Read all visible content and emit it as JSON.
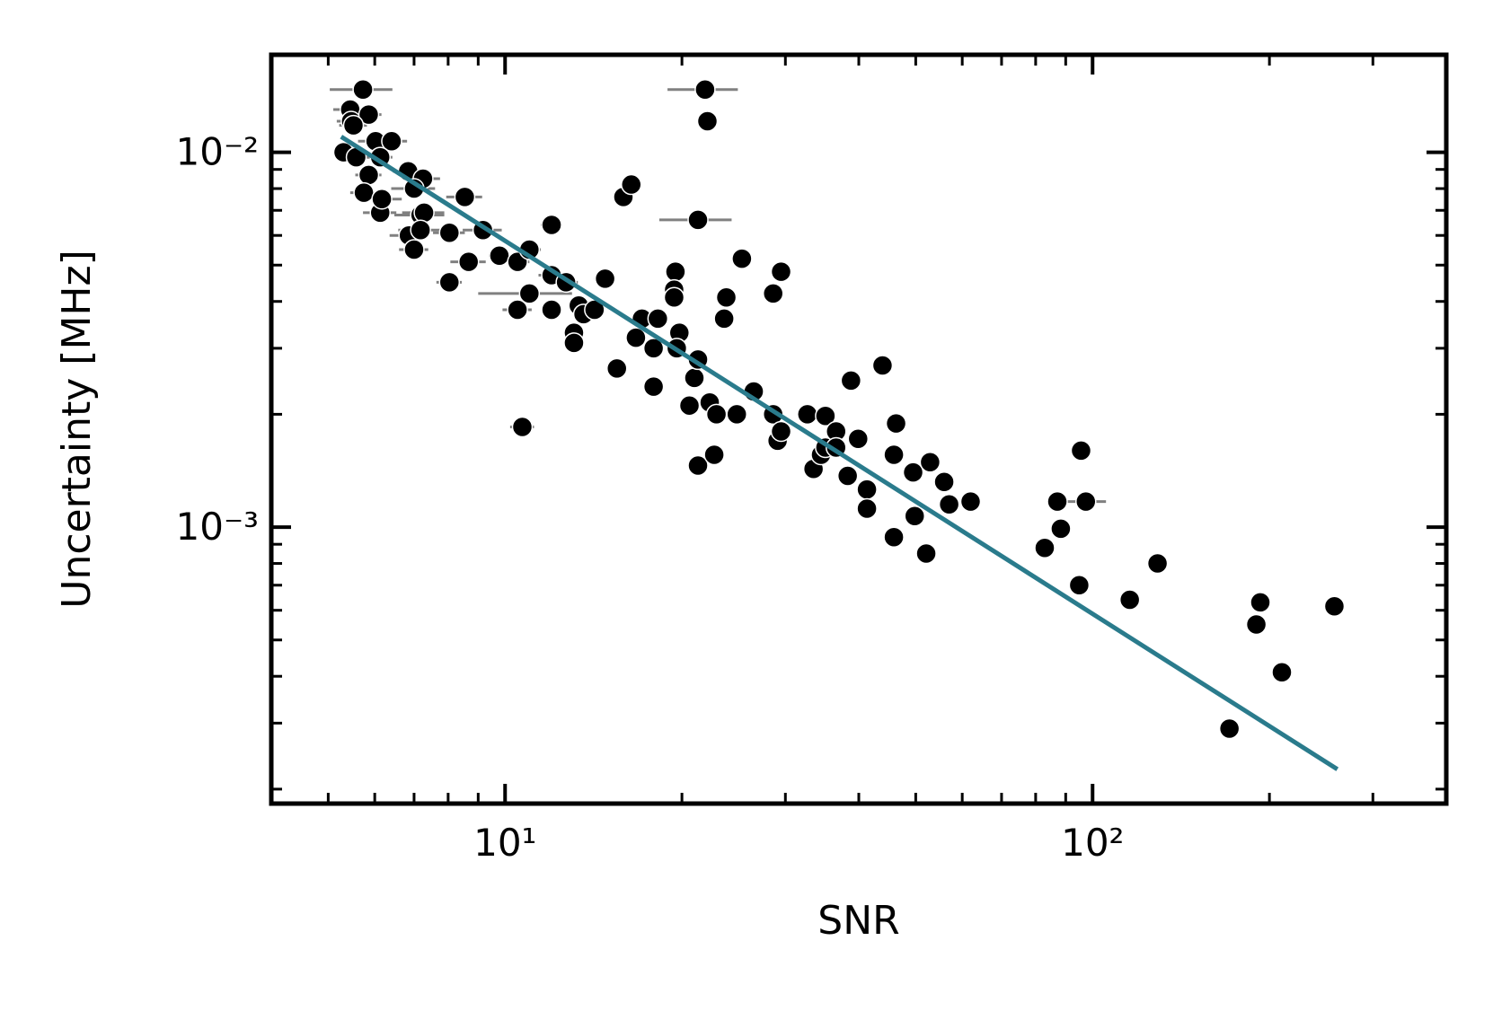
{
  "chart_data": {
    "type": "scatter",
    "xlabel": "SNR",
    "ylabel": "Uncertainty [MHz]",
    "xscale": "log",
    "yscale": "log",
    "xlim": [
      4,
      400
    ],
    "ylim": [
      0.000183,
      0.0182
    ],
    "xticks": [
      {
        "value": 10,
        "label": "10¹"
      },
      {
        "value": 100,
        "label": "10²"
      }
    ],
    "yticks": [
      {
        "value": 0.01,
        "label": "10⁻²"
      },
      {
        "value": 0.001,
        "label": "10⁻³"
      }
    ],
    "xminorticks": [
      5,
      6,
      7,
      8,
      9,
      20,
      30,
      40,
      50,
      60,
      70,
      80,
      90,
      200,
      300
    ],
    "yminorticks": [
      0.0002,
      0.0003,
      0.0004,
      0.0005,
      0.0006,
      0.0007,
      0.0008,
      0.0009,
      0.002,
      0.003,
      0.004,
      0.005,
      0.006,
      0.007,
      0.008,
      0.009
    ],
    "series": [
      {
        "kind": "points",
        "color": "#000000",
        "edgecolor": "#ffffff",
        "errcolor": "#808080",
        "x": [
          5.73,
          5.45,
          5.47,
          5.86,
          5.52,
          6.02,
          6.41,
          5.31,
          5.58,
          5.86,
          6.13,
          5.75,
          6.13,
          6.17,
          6.84,
          7.25,
          7.0,
          7.18,
          7.28,
          6.86,
          7.0,
          7.18,
          8.04,
          8.54,
          9.17,
          8.67,
          8.04,
          9.78,
          10.5,
          11.0,
          10.5,
          11.0,
          10.7,
          12.0,
          12.0,
          12.0,
          12.7,
          13.1,
          13.1,
          13.35,
          13.6,
          14.2,
          14.8,
          15.5,
          15.9,
          16.4,
          16.7,
          17.1,
          17.9,
          17.9,
          18.2,
          19.5,
          19.4,
          19.4,
          19.8,
          19.6,
          20.6,
          21.0,
          21.3,
          21.3,
          21.3,
          21.9,
          22.1,
          22.3,
          22.9,
          22.7,
          23.6,
          23.8,
          24.8,
          25.3,
          26.5,
          28.6,
          29.5,
          28.6,
          29.1,
          29.5,
          32.7,
          33.5,
          34.5,
          35.1,
          35.1,
          36.6,
          36.6,
          38.3,
          38.8,
          39.9,
          41.3,
          41.3,
          43.9,
          45.9,
          46.3,
          45.9,
          49.5,
          49.8,
          52.9,
          52.1,
          55.9,
          57.0,
          62.0,
          82.9,
          87.1,
          88.3,
          94.9,
          95.6,
          97.4,
          115.7,
          129,
          171,
          190,
          193,
          210,
          258
        ],
        "values": [
          0.0147,
          0.013,
          0.0121,
          0.0126,
          0.0118,
          0.0107,
          0.0107,
          0.01,
          0.0097,
          0.0087,
          0.0097,
          0.0078,
          0.0069,
          0.0075,
          0.0089,
          0.0085,
          0.008,
          0.0068,
          0.0069,
          0.006,
          0.0055,
          0.0062,
          0.0061,
          0.0076,
          0.0062,
          0.0051,
          0.0045,
          0.0053,
          0.0051,
          0.0055,
          0.0038,
          0.0042,
          0.00185,
          0.0064,
          0.0047,
          0.0038,
          0.0045,
          0.0033,
          0.0031,
          0.0039,
          0.0037,
          0.0038,
          0.0046,
          0.00265,
          0.0076,
          0.0082,
          0.0032,
          0.0036,
          0.003,
          0.00237,
          0.0036,
          0.0048,
          0.0043,
          0.0041,
          0.0033,
          0.003,
          0.00211,
          0.0025,
          0.0028,
          0.0066,
          0.00146,
          0.0147,
          0.0121,
          0.00215,
          0.002,
          0.00156,
          0.0036,
          0.0041,
          0.002,
          0.0052,
          0.0023,
          0.0042,
          0.0048,
          0.002,
          0.0017,
          0.0018,
          0.002,
          0.00143,
          0.00156,
          0.00198,
          0.00163,
          0.0018,
          0.00163,
          0.00137,
          0.00246,
          0.00172,
          0.00126,
          0.00112,
          0.0027,
          0.00156,
          0.00189,
          0.00094,
          0.0014,
          0.00107,
          0.00149,
          0.00085,
          0.00132,
          0.00115,
          0.00117,
          0.00088,
          0.00117,
          0.00099,
          0.0007,
          0.0016,
          0.00117,
          0.00064,
          0.0008,
          0.00029,
          0.00055,
          0.00063,
          0.00041,
          0.000615
        ],
        "xerr": [
          0.7,
          0.35,
          0.3,
          0.3,
          0.3,
          0.4,
          0.4,
          0.2,
          0.3,
          0.3,
          0.3,
          0.3,
          0.4,
          0.5,
          0.4,
          0.5,
          0.6,
          0.7,
          0.6,
          0.5,
          0.4,
          0.6,
          0.5,
          0.6,
          0.7,
          0.6,
          0.4,
          0.4,
          0.5,
          0.5,
          0.6,
          2,
          0.5,
          0.5,
          0.6,
          0.4,
          0.6,
          0.4,
          0.4,
          0.5,
          0.5,
          0.4,
          0.6,
          0.4,
          0.6,
          0.6,
          0.5,
          0.5,
          0.6,
          0.5,
          0.5,
          0.6,
          0.6,
          0.7,
          0.5,
          0.5,
          0.4,
          0.5,
          0.5,
          3,
          0.6,
          3,
          null,
          0.5,
          0.5,
          0.5,
          0.5,
          0.5,
          0.5,
          0.5,
          0.5,
          0.6,
          0.6,
          0.6,
          0.5,
          0.5,
          0.5,
          0.6,
          0.6,
          0.5,
          0.5,
          0.6,
          0.6,
          0.6,
          0.5,
          0.5,
          0.6,
          0.8,
          0.8,
          0.7,
          0.6,
          0.6,
          0.7,
          0.8,
          0.6,
          0.6,
          0.8,
          0.8,
          0.9,
          1.0,
          2,
          1.0,
          1.2,
          null,
          8,
          null,
          null,
          null,
          null,
          null,
          null,
          null
        ]
      },
      {
        "kind": "line",
        "color": "#2a7b8c",
        "x": [
          5.26,
          261
        ],
        "values": [
          0.011,
          0.000226
        ]
      }
    ]
  }
}
